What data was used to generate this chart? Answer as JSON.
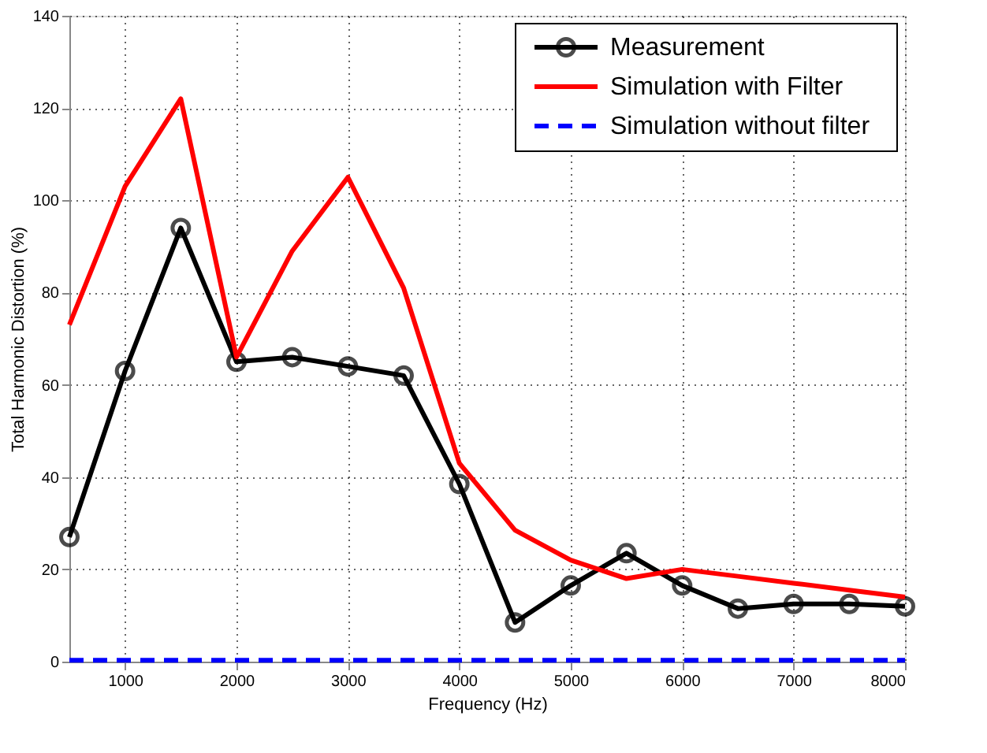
{
  "chart_data": {
    "type": "line",
    "xlabel": "Frequency (Hz)",
    "ylabel": "Total Harmonic Distortion (%)",
    "x": [
      500,
      1000,
      1500,
      2000,
      2500,
      3000,
      3500,
      4000,
      4500,
      5000,
      5500,
      6000,
      6500,
      7000,
      7500,
      8000
    ],
    "series": [
      {
        "name": "Measurement",
        "color": "#000000",
        "marker": "circle",
        "line_style": "solid",
        "values": [
          27,
          63,
          94,
          65,
          66,
          64,
          62,
          38.5,
          8.5,
          16.5,
          23.5,
          16.5,
          11.5,
          12.5,
          12.5,
          12
        ]
      },
      {
        "name": "Simulation with Filter",
        "color": "#ff0000",
        "marker": "none",
        "line_style": "solid",
        "values": [
          73,
          103,
          122,
          66,
          89,
          105,
          81,
          43,
          28.5,
          22,
          18,
          20,
          18.5,
          17,
          15.5,
          14
        ]
      },
      {
        "name": "Simulation without filter",
        "color": "#0000ff",
        "marker": "none",
        "line_style": "dashed",
        "values": [
          0.3,
          0.3,
          0.3,
          0.3,
          0.3,
          0.3,
          0.3,
          0.3,
          0.3,
          0.3,
          0.3,
          0.3,
          0.3,
          0.3,
          0.3,
          0.3
        ]
      }
    ],
    "xlim": [
      500,
      8000
    ],
    "xticks": [
      1000,
      2000,
      3000,
      4000,
      5000,
      6000,
      7000,
      8000
    ],
    "ylim": [
      0,
      140
    ],
    "yticks": [
      0,
      20,
      40,
      60,
      80,
      100,
      120,
      140
    ],
    "grid": true,
    "legend": "top right"
  }
}
